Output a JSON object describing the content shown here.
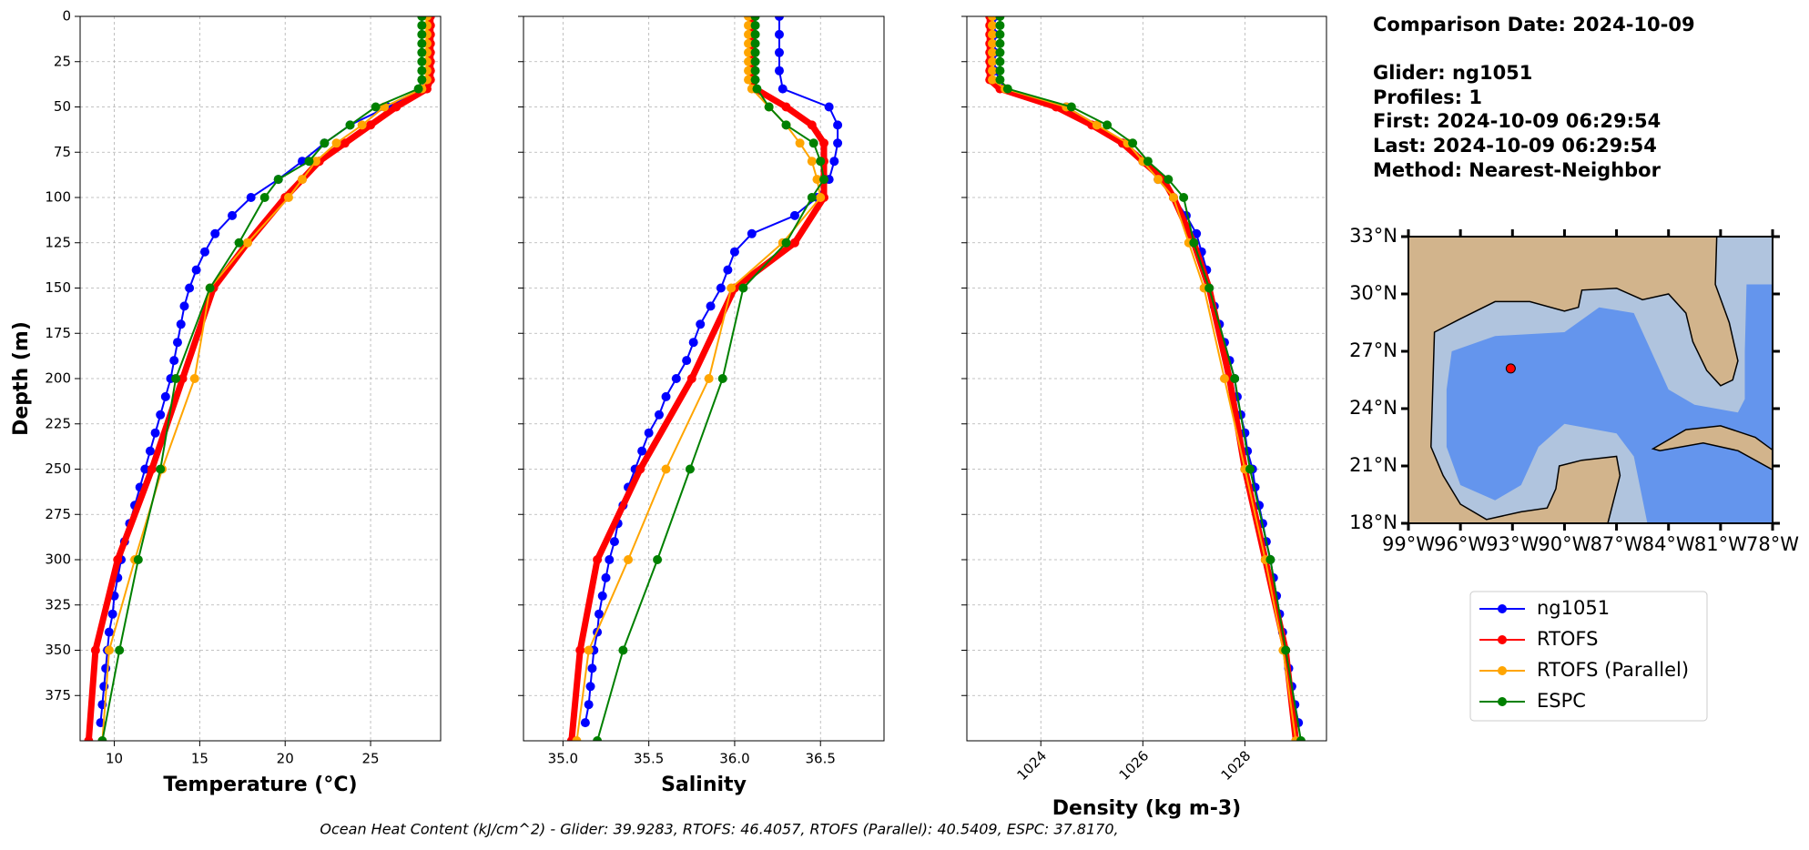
{
  "chart_data": [
    {
      "type": "line",
      "xlabel": "Temperature (°C)",
      "ylabel": "Depth (m)",
      "xlim": [
        8,
        29.1
      ],
      "ylim": [
        0,
        400
      ],
      "invert_y": true,
      "grid": true,
      "xticks": [
        10,
        15,
        20,
        25
      ],
      "yticks": [
        0,
        25,
        50,
        75,
        100,
        125,
        150,
        175,
        200,
        225,
        250,
        275,
        300,
        325,
        350,
        375
      ],
      "series": [
        {
          "name": "ng1051",
          "color": "#0000ff",
          "linewidth": 2,
          "depth": [
            0,
            10,
            20,
            30,
            40,
            50,
            60,
            70,
            80,
            90,
            100,
            110,
            120,
            130,
            140,
            150,
            160,
            170,
            180,
            190,
            200,
            210,
            220,
            230,
            240,
            250,
            260,
            270,
            280,
            290,
            300,
            310,
            320,
            330,
            340,
            350,
            360,
            370,
            380,
            390
          ],
          "values": [
            28.4,
            28.4,
            28.4,
            28.4,
            28.0,
            26.0,
            23.8,
            22.3,
            21.0,
            19.6,
            18.0,
            16.9,
            15.9,
            15.3,
            14.8,
            14.4,
            14.1,
            13.9,
            13.7,
            13.5,
            13.3,
            13.0,
            12.7,
            12.4,
            12.1,
            11.8,
            11.5,
            11.2,
            10.9,
            10.6,
            10.4,
            10.2,
            10.0,
            9.9,
            9.7,
            9.6,
            9.5,
            9.4,
            9.3,
            9.2
          ]
        },
        {
          "name": "RTOFS",
          "color": "#ff0000",
          "linewidth": 7,
          "depth": [
            0,
            5,
            10,
            15,
            20,
            25,
            30,
            35,
            40,
            50,
            60,
            70,
            80,
            90,
            100,
            125,
            150,
            200,
            250,
            300,
            350,
            400
          ],
          "values": [
            28.5,
            28.5,
            28.5,
            28.5,
            28.5,
            28.5,
            28.5,
            28.5,
            28.3,
            26.5,
            25.0,
            23.5,
            22.0,
            21.0,
            20.0,
            17.8,
            15.8,
            14.0,
            12.2,
            10.2,
            8.9,
            8.5
          ]
        },
        {
          "name": "RTOFS (Parallel)",
          "color": "#ffa500",
          "linewidth": 2,
          "depth": [
            0,
            5,
            10,
            15,
            20,
            25,
            30,
            35,
            40,
            50,
            60,
            70,
            80,
            90,
            100,
            125,
            150,
            200,
            250,
            300,
            350,
            400
          ],
          "values": [
            28.3,
            28.3,
            28.3,
            28.3,
            28.3,
            28.3,
            28.3,
            28.3,
            28.0,
            25.8,
            24.5,
            23.0,
            21.8,
            21.0,
            20.2,
            17.8,
            15.6,
            14.7,
            12.8,
            11.2,
            9.7,
            9.3
          ]
        },
        {
          "name": "ESPC",
          "color": "#008000",
          "linewidth": 2,
          "depth": [
            0,
            5,
            10,
            15,
            20,
            25,
            30,
            35,
            40,
            50,
            60,
            70,
            80,
            90,
            100,
            125,
            150,
            200,
            250,
            300,
            350,
            400
          ],
          "values": [
            28.0,
            28.0,
            28.0,
            28.0,
            28.0,
            28.0,
            28.0,
            28.0,
            27.8,
            25.3,
            23.8,
            22.3,
            21.4,
            19.6,
            18.8,
            17.3,
            15.6,
            13.6,
            12.7,
            11.4,
            10.3,
            9.3
          ]
        }
      ]
    },
    {
      "type": "line",
      "xlabel": "Salinity",
      "xlim": [
        34.77,
        36.87
      ],
      "ylim": [
        0,
        400
      ],
      "invert_y": true,
      "grid": true,
      "xticks": [
        {
          "value": 35,
          "label": "35.0"
        },
        35.5,
        {
          "value": 36,
          "label": "36.0"
        },
        36.5
      ],
      "series": [
        {
          "name": "ng1051",
          "color": "#0000ff",
          "linewidth": 2,
          "depth": [
            0,
            10,
            20,
            30,
            40,
            50,
            60,
            70,
            80,
            90,
            100,
            110,
            120,
            130,
            140,
            150,
            160,
            170,
            180,
            190,
            200,
            210,
            220,
            230,
            240,
            250,
            260,
            270,
            280,
            290,
            300,
            310,
            320,
            330,
            340,
            350,
            360,
            370,
            380,
            390
          ],
          "values": [
            36.26,
            36.26,
            36.26,
            36.26,
            36.28,
            36.55,
            36.6,
            36.6,
            36.58,
            36.55,
            36.48,
            36.35,
            36.1,
            36.0,
            35.96,
            35.92,
            35.86,
            35.8,
            35.76,
            35.72,
            35.66,
            35.6,
            35.56,
            35.5,
            35.46,
            35.42,
            35.38,
            35.35,
            35.32,
            35.3,
            35.27,
            35.25,
            35.23,
            35.21,
            35.2,
            35.18,
            35.17,
            35.16,
            35.15,
            35.13
          ]
        },
        {
          "name": "RTOFS",
          "color": "#ff0000",
          "linewidth": 7,
          "depth": [
            0,
            5,
            10,
            15,
            20,
            25,
            30,
            35,
            40,
            50,
            60,
            70,
            80,
            90,
            100,
            125,
            150,
            200,
            250,
            300,
            350,
            400
          ],
          "values": [
            36.1,
            36.1,
            36.1,
            36.1,
            36.1,
            36.1,
            36.1,
            36.1,
            36.12,
            36.3,
            36.45,
            36.52,
            36.52,
            36.52,
            36.52,
            36.35,
            36.0,
            35.75,
            35.45,
            35.2,
            35.1,
            35.05
          ]
        },
        {
          "name": "RTOFS (Parallel)",
          "color": "#ffa500",
          "linewidth": 2,
          "depth": [
            0,
            5,
            10,
            15,
            20,
            25,
            30,
            35,
            40,
            50,
            60,
            70,
            80,
            90,
            100,
            125,
            150,
            200,
            250,
            300,
            350,
            400
          ],
          "values": [
            36.08,
            36.08,
            36.08,
            36.08,
            36.08,
            36.08,
            36.08,
            36.08,
            36.1,
            36.2,
            36.3,
            36.38,
            36.45,
            36.48,
            36.5,
            36.28,
            35.98,
            35.85,
            35.6,
            35.38,
            35.15,
            35.08
          ]
        },
        {
          "name": "ESPC",
          "color": "#008000",
          "linewidth": 2,
          "depth": [
            0,
            5,
            10,
            15,
            20,
            25,
            30,
            35,
            40,
            50,
            60,
            70,
            80,
            90,
            100,
            125,
            150,
            200,
            250,
            300,
            350,
            400
          ],
          "values": [
            36.12,
            36.12,
            36.12,
            36.12,
            36.12,
            36.12,
            36.12,
            36.12,
            36.13,
            36.2,
            36.3,
            36.46,
            36.5,
            36.52,
            36.45,
            36.3,
            36.05,
            35.93,
            35.74,
            35.55,
            35.35,
            35.2
          ]
        }
      ]
    },
    {
      "type": "line",
      "xlabel": "Density (kg m-3)",
      "xlim": [
        1022.55,
        1029.6
      ],
      "ylim": [
        0,
        400
      ],
      "invert_y": true,
      "grid": true,
      "xtick_rotation": 45,
      "xticks": [
        1024,
        1026,
        1028
      ],
      "series": [
        {
          "name": "ng1051",
          "color": "#0000ff",
          "linewidth": 2,
          "depth": [
            0,
            10,
            20,
            30,
            40,
            50,
            60,
            70,
            80,
            90,
            100,
            110,
            120,
            130,
            140,
            150,
            160,
            170,
            180,
            190,
            200,
            210,
            220,
            230,
            240,
            250,
            260,
            270,
            280,
            290,
            300,
            310,
            320,
            330,
            340,
            350,
            360,
            370,
            380,
            390
          ],
          "values": [
            1023.1,
            1023.1,
            1023.1,
            1023.1,
            1023.3,
            1024.5,
            1025.1,
            1025.6,
            1026.0,
            1026.3,
            1026.6,
            1026.85,
            1027.05,
            1027.15,
            1027.25,
            1027.3,
            1027.4,
            1027.5,
            1027.6,
            1027.7,
            1027.8,
            1027.85,
            1027.92,
            1028.0,
            1028.05,
            1028.15,
            1028.2,
            1028.28,
            1028.35,
            1028.42,
            1028.5,
            1028.56,
            1028.62,
            1028.68,
            1028.74,
            1028.8,
            1028.86,
            1028.92,
            1028.98,
            1029.05
          ]
        },
        {
          "name": "RTOFS",
          "color": "#ff0000",
          "linewidth": 7,
          "depth": [
            0,
            5,
            10,
            15,
            20,
            25,
            30,
            35,
            40,
            50,
            60,
            70,
            80,
            90,
            100,
            125,
            150,
            200,
            250,
            300,
            350,
            400
          ],
          "values": [
            1023.0,
            1023.0,
            1023.0,
            1023.0,
            1023.0,
            1023.0,
            1023.0,
            1023.0,
            1023.2,
            1024.3,
            1025.0,
            1025.6,
            1026.0,
            1026.4,
            1026.6,
            1027.0,
            1027.3,
            1027.7,
            1028.0,
            1028.4,
            1028.8,
            1029.0
          ]
        },
        {
          "name": "RTOFS (Parallel)",
          "color": "#ffa500",
          "linewidth": 2,
          "depth": [
            0,
            5,
            10,
            15,
            20,
            25,
            30,
            35,
            40,
            50,
            60,
            70,
            80,
            90,
            100,
            125,
            150,
            200,
            250,
            300,
            350,
            400
          ],
          "values": [
            1023.05,
            1023.05,
            1023.05,
            1023.05,
            1023.05,
            1023.05,
            1023.05,
            1023.05,
            1023.3,
            1024.5,
            1025.1,
            1025.7,
            1026.0,
            1026.3,
            1026.6,
            1026.9,
            1027.2,
            1027.6,
            1028.0,
            1028.4,
            1028.75,
            1029.0
          ]
        },
        {
          "name": "ESPC",
          "color": "#008000",
          "linewidth": 2,
          "depth": [
            0,
            5,
            10,
            15,
            20,
            25,
            30,
            35,
            40,
            50,
            60,
            70,
            80,
            90,
            100,
            125,
            150,
            200,
            250,
            300,
            350,
            400
          ],
          "values": [
            1023.2,
            1023.2,
            1023.2,
            1023.2,
            1023.2,
            1023.2,
            1023.2,
            1023.2,
            1023.35,
            1024.6,
            1025.3,
            1025.8,
            1026.1,
            1026.5,
            1026.8,
            1027.0,
            1027.3,
            1027.8,
            1028.1,
            1028.5,
            1028.8,
            1029.1
          ]
        }
      ]
    }
  ],
  "info": {
    "lines": [
      "Comparison Date: 2024-10-09",
      "Glider: ng1051",
      "Profiles: 1",
      "First: 2024-10-09 06:29:54",
      "Last: 2024-10-09 06:29:54",
      "Method: Nearest-Neighbor"
    ]
  },
  "map": {
    "lon_lim": [
      -99,
      -78
    ],
    "lat_lim": [
      18,
      33
    ],
    "lon_ticks": [
      {
        "value": -99,
        "label": "99°W"
      },
      {
        "value": -96,
        "label": "96°W"
      },
      {
        "value": -93,
        "label": "93°W"
      },
      {
        "value": -90,
        "label": "90°W"
      },
      {
        "value": -87,
        "label": "87°W"
      },
      {
        "value": -84,
        "label": "84°W"
      },
      {
        "value": -81,
        "label": "81°W"
      },
      {
        "value": -78,
        "label": "78°W"
      }
    ],
    "lat_ticks": [
      {
        "value": 33,
        "label": "33°N"
      },
      {
        "value": 30,
        "label": "30°N"
      },
      {
        "value": 27,
        "label": "27°N"
      },
      {
        "value": 24,
        "label": "24°N"
      },
      {
        "value": 21,
        "label": "21°N"
      },
      {
        "value": 18,
        "label": "18°N"
      }
    ],
    "glider_position": {
      "lon": -93.1,
      "lat": 26.1
    },
    "glider_color": "#ff0000"
  },
  "footer": "Ocean Heat Content (kJ/cm^2) - Glider: 39.9283,  RTOFS: 46.4057,  RTOFS (Parallel): 40.5409,  ESPC: 37.8170,"
}
